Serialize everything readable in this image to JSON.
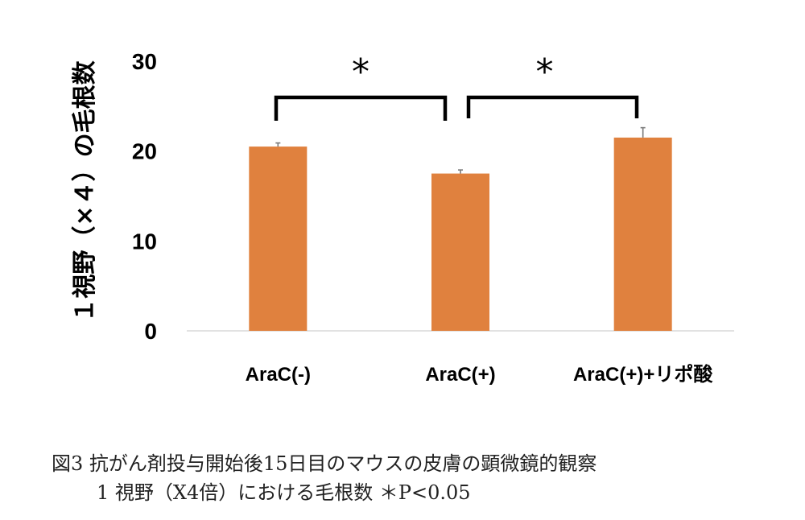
{
  "chart_data": {
    "type": "bar",
    "categories": [
      "AraC(-)",
      "AraC(+)",
      "AraC(+)+リポ酸"
    ],
    "values": [
      20.5,
      17.5,
      21.5
    ],
    "errors": [
      0.4,
      0.4,
      1.1
    ],
    "ylabel": "１視野（×４）の毛根数",
    "ylim": [
      0,
      30
    ],
    "yticks": [
      0,
      10,
      20,
      30
    ],
    "bar_color": "#E0813E",
    "error_color": "#7a7a7a",
    "significance": [
      {
        "from": 0,
        "to": 1,
        "label": "*"
      },
      {
        "from": 1,
        "to": 2,
        "label": "*"
      }
    ],
    "grid": false
  },
  "caption": {
    "line1": "図3 抗がん剤投与開始後15日目のマウスの皮膚の顕微鏡的観察",
    "line2": "1 視野（X4倍）における毛根数 ＊P<0.05"
  }
}
